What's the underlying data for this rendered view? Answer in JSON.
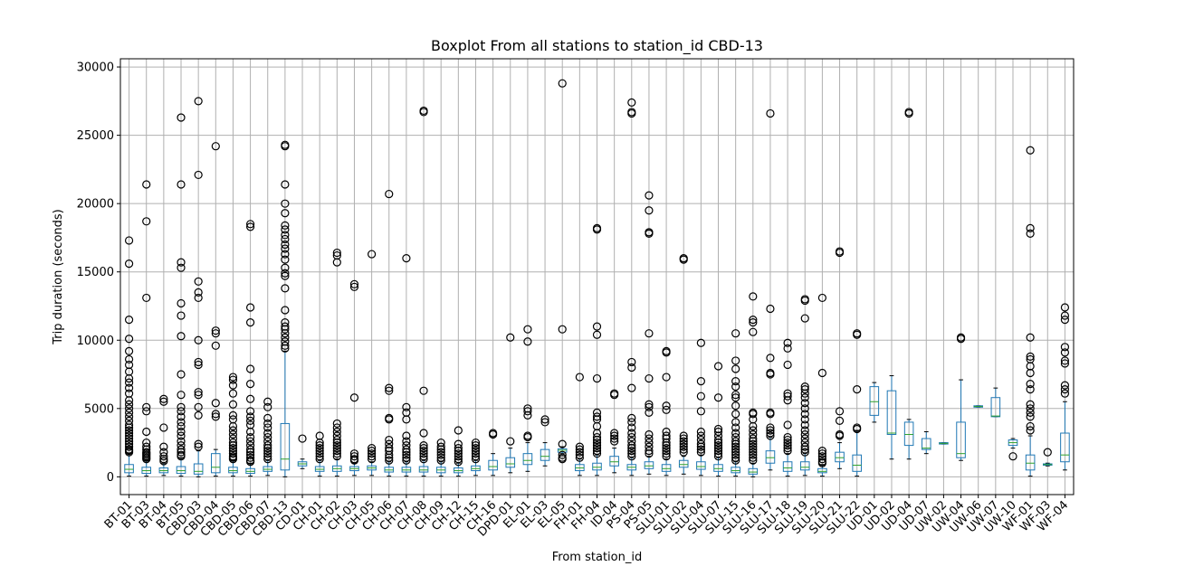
{
  "chart_data": {
    "type": "boxplot",
    "title": "Boxplot From all stations to station_id CBD-13",
    "xlabel": "From station_id",
    "ylabel": "Trip duration (seconds)",
    "ylim": [
      -1300,
      30600
    ],
    "yticks": [
      0,
      5000,
      10000,
      15000,
      20000,
      25000,
      30000
    ],
    "ytick_labels": [
      "0",
      "5000",
      "10000",
      "15000",
      "20000",
      "25000",
      "30000"
    ],
    "grid": true,
    "colors": {
      "box": "#1f77b4",
      "median": "#2ca02c",
      "whisker": "#000000",
      "flier": "#000000",
      "grid": "#b0b0b0"
    },
    "categories": [
      "BT-01",
      "BT-03",
      "BT-04",
      "BT-05",
      "CBD-03",
      "CBD-04",
      "CBD-05",
      "CBD-06",
      "CBD-07",
      "CBD-13",
      "CD-01",
      "CH-01",
      "CH-02",
      "CH-03",
      "CH-05",
      "CH-06",
      "CH-07",
      "CH-08",
      "CH-09",
      "CH-12",
      "CH-15",
      "CH-16",
      "DPD-01",
      "EL-01",
      "EL-03",
      "EL-05",
      "FH-01",
      "FH-04",
      "ID-04",
      "PS-04",
      "PS-05",
      "SLU-01",
      "SLU-02",
      "SLU-04",
      "SLU-07",
      "SLU-15",
      "SLU-16",
      "SLU-17",
      "SLU-18",
      "SLU-19",
      "SLU-20",
      "SLU-21",
      "SLU-22",
      "UD-01",
      "UD-02",
      "UD-04",
      "UD-07",
      "UW-02",
      "UW-04",
      "UW-06",
      "UW-07",
      "UW-10",
      "WF-01",
      "WF-03",
      "WF-04"
    ],
    "boxes": [
      {
        "q1": 300,
        "med": 550,
        "q3": 900,
        "wlo": 50,
        "whi": 1700,
        "fliers": [
          17300,
          15600,
          11500,
          10100,
          9200,
          8600,
          8200,
          7700,
          7200,
          6900,
          6500,
          6100,
          5600,
          5300,
          5000,
          4700,
          4400,
          4100,
          3800,
          3600,
          3400,
          3200,
          3000,
          2800,
          2600,
          2400,
          2200,
          2000,
          1900,
          1800
        ]
      },
      {
        "q1": 250,
        "med": 450,
        "q3": 700,
        "wlo": 50,
        "whi": 1200,
        "fliers": [
          21400,
          18700,
          13100,
          5100,
          4800,
          3300,
          2500,
          2200,
          2000,
          1800,
          1700,
          1600,
          1500,
          1400,
          1300
        ]
      },
      {
        "q1": 300,
        "med": 450,
        "q3": 650,
        "wlo": 100,
        "whi": 1000,
        "fliers": [
          5700,
          5500,
          3600,
          2200,
          1800,
          1500,
          1300,
          1150
        ]
      },
      {
        "q1": 250,
        "med": 450,
        "q3": 750,
        "wlo": 50,
        "whi": 1400,
        "fliers": [
          26300,
          21400,
          15700,
          15300,
          12700,
          11800,
          10300,
          7500,
          6000,
          5100,
          4800,
          4400,
          4000,
          3700,
          3300,
          3000,
          2600,
          2300,
          2000,
          1800,
          1600,
          1500
        ]
      },
      {
        "q1": 200,
        "med": 400,
        "q3": 950,
        "wlo": 0,
        "whi": 1900,
        "fliers": [
          27500,
          22100,
          14300,
          13500,
          13100,
          10000,
          8400,
          8200,
          6200,
          6000,
          5100,
          4500,
          2400,
          2200
        ]
      },
      {
        "q1": 300,
        "med": 700,
        "q3": 1700,
        "wlo": 50,
        "whi": 2000,
        "fliers": [
          24200,
          10700,
          10500,
          9600,
          5400,
          4600,
          4400
        ]
      },
      {
        "q1": 300,
        "med": 450,
        "q3": 700,
        "wlo": 50,
        "whi": 1200,
        "fliers": [
          7300,
          7100,
          6700,
          6100,
          5300,
          4500,
          4200,
          3700,
          3400,
          3100,
          2800,
          2500,
          2300,
          2100,
          1900,
          1700,
          1500,
          1400,
          1300
        ]
      },
      {
        "q1": 250,
        "med": 400,
        "q3": 600,
        "wlo": 50,
        "whi": 1000,
        "fliers": [
          18500,
          18300,
          12400,
          11300,
          7900,
          6800,
          5700,
          4800,
          4400,
          4100,
          3800,
          3300,
          2900,
          2600,
          2300,
          2000,
          1800,
          1600,
          1400,
          1200,
          1100
        ]
      },
      {
        "q1": 400,
        "med": 550,
        "q3": 750,
        "wlo": 100,
        "whi": 1200,
        "fliers": [
          5500,
          5100,
          4300,
          3900,
          3600,
          3200,
          2900,
          2600,
          2300,
          2100,
          1900,
          1700,
          1500,
          1300
        ]
      },
      {
        "q1": 500,
        "med": 1300,
        "q3": 3900,
        "wlo": 0,
        "whi": 9200,
        "fliers": [
          24300,
          24200,
          21400,
          20000,
          19300,
          18400,
          18100,
          17700,
          17400,
          17000,
          16700,
          16300,
          15900,
          15300,
          14900,
          14700,
          13800,
          12200,
          11300,
          11000,
          10800,
          10500,
          10200,
          9900,
          9600,
          9400
        ]
      },
      {
        "q1": 800,
        "med": 950,
        "q3": 1100,
        "wlo": 600,
        "whi": 1300,
        "fliers": [
          2800
        ]
      },
      {
        "q1": 400,
        "med": 550,
        "q3": 750,
        "wlo": 50,
        "whi": 1200,
        "fliers": [
          3000,
          2500,
          2300,
          2100,
          1900,
          1700,
          1500,
          1300
        ]
      },
      {
        "q1": 400,
        "med": 600,
        "q3": 800,
        "wlo": 50,
        "whi": 1300,
        "fliers": [
          16400,
          16200,
          15700,
          3900,
          3600,
          3300,
          3000,
          2700,
          2500,
          2300,
          2100,
          1900,
          1700,
          1500
        ]
      },
      {
        "q1": 450,
        "med": 600,
        "q3": 750,
        "wlo": 100,
        "whi": 1000,
        "fliers": [
          14100,
          13900,
          5800,
          1700,
          1500,
          1300,
          1200
        ]
      },
      {
        "q1": 500,
        "med": 650,
        "q3": 800,
        "wlo": 100,
        "whi": 1100,
        "fliers": [
          16300,
          2100,
          1900,
          1700,
          1500,
          1300
        ]
      },
      {
        "q1": 350,
        "med": 500,
        "q3": 700,
        "wlo": 50,
        "whi": 1100,
        "fliers": [
          20700,
          6500,
          6300,
          4300,
          4200,
          2700,
          2400,
          2100,
          1900,
          1600,
          1400,
          1200
        ]
      },
      {
        "q1": 350,
        "med": 500,
        "q3": 700,
        "wlo": 50,
        "whi": 1100,
        "fliers": [
          16000,
          5100,
          4700,
          4200,
          3000,
          2600,
          2300,
          2000,
          1800,
          1600,
          1400,
          1200
        ]
      },
      {
        "q1": 350,
        "med": 500,
        "q3": 750,
        "wlo": 50,
        "whi": 1200,
        "fliers": [
          26800,
          26700,
          6300,
          3200,
          2300,
          2100,
          1900,
          1700,
          1500,
          1300
        ]
      },
      {
        "q1": 300,
        "med": 500,
        "q3": 700,
        "wlo": 50,
        "whi": 1100,
        "fliers": [
          2500,
          2200,
          2000,
          1800,
          1600,
          1400,
          1200
        ]
      },
      {
        "q1": 300,
        "med": 450,
        "q3": 650,
        "wlo": 50,
        "whi": 1000,
        "fliers": [
          3400,
          2400,
          2100,
          1900,
          1700,
          1500,
          1300,
          1100
        ]
      },
      {
        "q1": 450,
        "med": 600,
        "q3": 800,
        "wlo": 100,
        "whi": 1200,
        "fliers": [
          2500,
          2300,
          2100,
          1900,
          1700,
          1500,
          1300
        ]
      },
      {
        "q1": 500,
        "med": 750,
        "q3": 1200,
        "wlo": 100,
        "whi": 1700,
        "fliers": [
          3200,
          3100
        ]
      },
      {
        "q1": 700,
        "med": 950,
        "q3": 1400,
        "wlo": 300,
        "whi": 2100,
        "fliers": [
          10200,
          2600
        ]
      },
      {
        "q1": 900,
        "med": 1200,
        "q3": 1700,
        "wlo": 400,
        "whi": 2500,
        "fliers": [
          10800,
          9900,
          5000,
          4800,
          4500,
          3000,
          2900
        ]
      },
      {
        "q1": 1200,
        "med": 1500,
        "q3": 2000,
        "wlo": 800,
        "whi": 2500,
        "fliers": [
          4200,
          4000
        ]
      },
      {
        "q1": 1800,
        "med": 1950,
        "q3": 2050,
        "wlo": 1700,
        "whi": 2200,
        "fliers": [
          28800,
          10800,
          2400,
          1600,
          1400,
          1300
        ]
      },
      {
        "q1": 450,
        "med": 650,
        "q3": 900,
        "wlo": 100,
        "whi": 1300,
        "fliers": [
          7300,
          2200,
          2000,
          1800,
          1600,
          1400
        ]
      },
      {
        "q1": 500,
        "med": 700,
        "q3": 1000,
        "wlo": 100,
        "whi": 1600,
        "fliers": [
          18200,
          18100,
          11000,
          10400,
          7200,
          4700,
          4400,
          4200,
          3700,
          3200,
          2900,
          2700,
          2500,
          2300,
          2100,
          1900,
          1700
        ]
      },
      {
        "q1": 800,
        "med": 1100,
        "q3": 1500,
        "wlo": 300,
        "whi": 2100,
        "fliers": [
          6100,
          6000,
          3200,
          3000,
          2800,
          2600
        ]
      },
      {
        "q1": 500,
        "med": 700,
        "q3": 900,
        "wlo": 100,
        "whi": 1400,
        "fliers": [
          27400,
          26700,
          26600,
          8400,
          8000,
          6500,
          4300,
          4000,
          3600,
          3200,
          2900,
          2600,
          2300,
          2100,
          1900,
          1700,
          1500
        ]
      },
      {
        "q1": 600,
        "med": 800,
        "q3": 1100,
        "wlo": 200,
        "whi": 1500,
        "fliers": [
          20600,
          19500,
          17900,
          17800,
          10500,
          7200,
          5300,
          5100,
          4700,
          3100,
          2800,
          2500,
          2200,
          1900,
          1700
        ]
      },
      {
        "q1": 400,
        "med": 600,
        "q3": 900,
        "wlo": 100,
        "whi": 1300,
        "fliers": [
          9200,
          9100,
          7300,
          5200,
          4900,
          3300,
          3000,
          2800,
          2500,
          2300,
          2100,
          1900,
          1700,
          1500
        ]
      },
      {
        "q1": 700,
        "med": 900,
        "q3": 1200,
        "wlo": 200,
        "whi": 1500,
        "fliers": [
          16000,
          15900,
          3000,
          2800,
          2600,
          2400,
          2200,
          2000,
          1800
        ]
      },
      {
        "q1": 550,
        "med": 750,
        "q3": 1100,
        "wlo": 100,
        "whi": 1600,
        "fliers": [
          9800,
          7000,
          5900,
          4800,
          3300,
          3000,
          2700,
          2400,
          2200,
          2000,
          1800
        ]
      },
      {
        "q1": 400,
        "med": 600,
        "q3": 900,
        "wlo": 50,
        "whi": 1400,
        "fliers": [
          8100,
          5800,
          3500,
          3300,
          3000,
          2700,
          2500,
          2300,
          2100,
          1900,
          1700,
          1500
        ]
      },
      {
        "q1": 300,
        "med": 450,
        "q3": 700,
        "wlo": 50,
        "whi": 1100,
        "fliers": [
          10500,
          8500,
          7900,
          7000,
          6600,
          6000,
          5800,
          5200,
          4600,
          4000,
          3600,
          3200,
          2900,
          2600,
          2400,
          2200,
          2000,
          1800,
          1600,
          1400,
          1200
        ]
      },
      {
        "q1": 200,
        "med": 350,
        "q3": 600,
        "wlo": 0,
        "whi": 1000,
        "fliers": [
          13200,
          11500,
          11300,
          10600,
          4700,
          4600,
          4200,
          3700,
          3400,
          3100,
          2800,
          2600,
          2400,
          2200,
          2000,
          1800,
          1600,
          1400,
          1200
        ]
      },
      {
        "q1": 1000,
        "med": 1400,
        "q3": 1900,
        "wlo": 500,
        "whi": 2900,
        "fliers": [
          26600,
          12300,
          8700,
          7600,
          7500,
          4700,
          4600,
          3600,
          3400,
          3200,
          3000
        ]
      },
      {
        "q1": 400,
        "med": 650,
        "q3": 1100,
        "wlo": 50,
        "whi": 1700,
        "fliers": [
          9800,
          9400,
          8200,
          6100,
          5900,
          5600,
          3800,
          2900,
          2700,
          2500,
          2300,
          2100,
          1900
        ]
      },
      {
        "q1": 500,
        "med": 700,
        "q3": 1100,
        "wlo": 100,
        "whi": 1700,
        "fliers": [
          13000,
          12900,
          11600,
          6600,
          6400,
          6100,
          5800,
          5400,
          5000,
          4600,
          4200,
          3800,
          3400,
          3100,
          2800,
          2500,
          2200,
          2000,
          1800
        ]
      },
      {
        "q1": 300,
        "med": 400,
        "q3": 600,
        "wlo": 50,
        "whi": 900,
        "fliers": [
          13100,
          7600,
          1900,
          1700,
          1500,
          1300,
          1100,
          1000
        ]
      },
      {
        "q1": 1100,
        "med": 1400,
        "q3": 1800,
        "wlo": 600,
        "whi": 2500,
        "fliers": [
          16500,
          16400,
          4800,
          4100,
          3100,
          3000
        ]
      },
      {
        "q1": 400,
        "med": 850,
        "q3": 1600,
        "wlo": 50,
        "whi": 3400,
        "fliers": [
          10500,
          10400,
          6400,
          3600,
          3500
        ]
      },
      {
        "q1": 4500,
        "med": 5500,
        "q3": 6600,
        "wlo": 4000,
        "whi": 6900,
        "fliers": []
      },
      {
        "q1": 3100,
        "med": 3200,
        "q3": 6300,
        "wlo": 1300,
        "whi": 7400,
        "fliers": []
      },
      {
        "q1": 2300,
        "med": 3100,
        "q3": 4000,
        "wlo": 1300,
        "whi": 4200,
        "fliers": [
          26700,
          26600
        ]
      },
      {
        "q1": 2000,
        "med": 2100,
        "q3": 2800,
        "wlo": 1700,
        "whi": 3300,
        "fliers": []
      },
      {
        "q1": 2400,
        "med": 2450,
        "q3": 2500,
        "wlo": 2400,
        "whi": 2500,
        "fliers": []
      },
      {
        "q1": 1400,
        "med": 1700,
        "q3": 4000,
        "wlo": 1200,
        "whi": 7100,
        "fliers": [
          10200,
          10100
        ]
      },
      {
        "q1": 5100,
        "med": 5150,
        "q3": 5200,
        "wlo": 5100,
        "whi": 5200,
        "fliers": []
      },
      {
        "q1": 4400,
        "med": 4450,
        "q3": 5800,
        "wlo": 4400,
        "whi": 6500,
        "fliers": []
      },
      {
        "q1": 2300,
        "med": 2500,
        "q3": 2700,
        "wlo": 2100,
        "whi": 2800,
        "fliers": [
          1500
        ]
      },
      {
        "q1": 500,
        "med": 1000,
        "q3": 1600,
        "wlo": 50,
        "whi": 3000,
        "fliers": [
          23900,
          18200,
          17800,
          10200,
          8800,
          8600,
          8100,
          7600,
          6800,
          6400,
          5300,
          5000,
          4700,
          4400,
          3700,
          3400
        ]
      },
      {
        "q1": 850,
        "med": 900,
        "q3": 950,
        "wlo": 800,
        "whi": 1000,
        "fliers": [
          1800
        ]
      },
      {
        "q1": 1100,
        "med": 1600,
        "q3": 3200,
        "wlo": 500,
        "whi": 5500,
        "fliers": [
          12400,
          11800,
          11500,
          9500,
          9100,
          8500,
          8300,
          6700,
          6400,
          6100
        ]
      }
    ]
  }
}
